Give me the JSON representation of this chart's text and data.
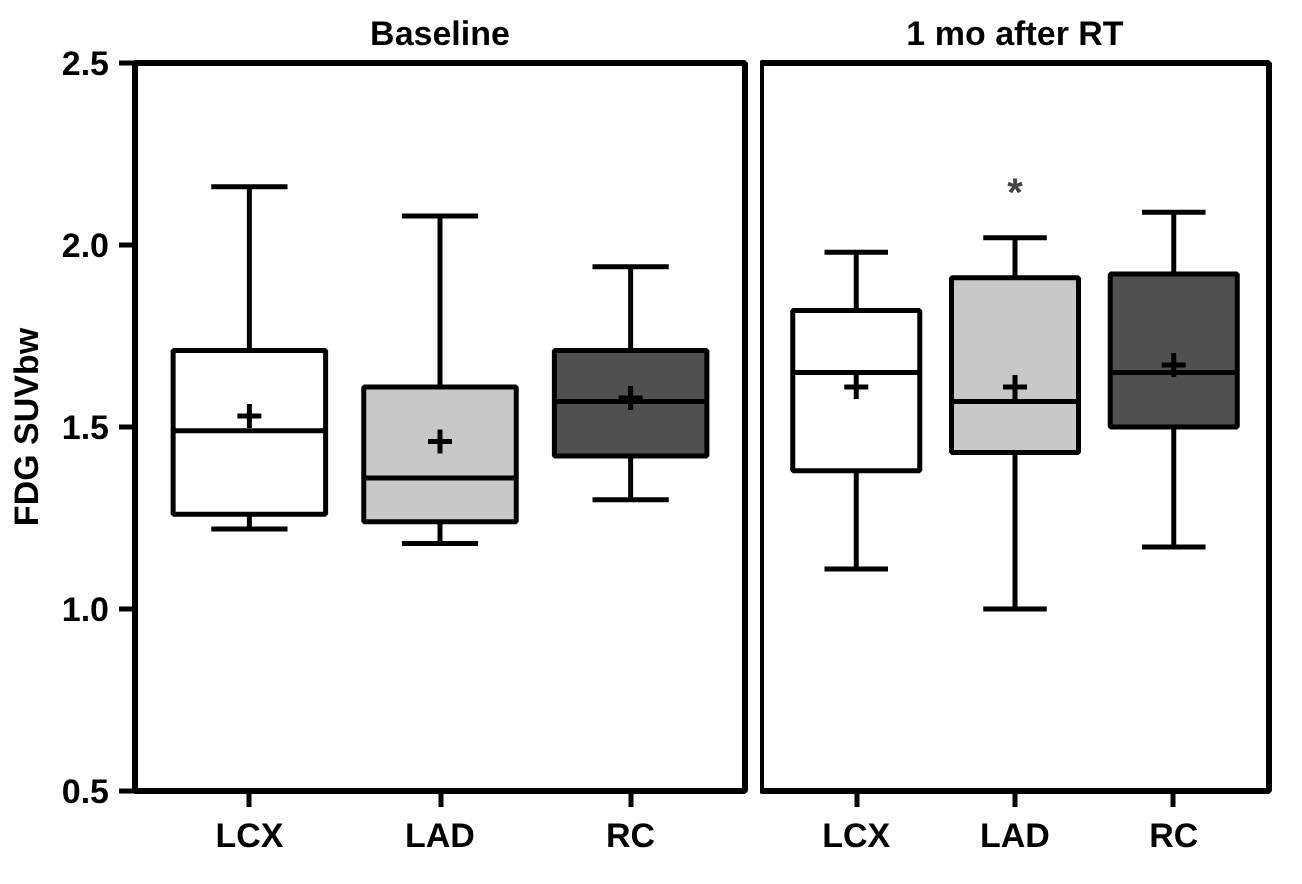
{
  "chart_data": [
    {
      "type": "box",
      "title": "Baseline",
      "ylabel": "FDG SUVbw",
      "categories": [
        "LCX",
        "LAD",
        "RC"
      ],
      "colors": [
        "#ffffff",
        "#c8c8c8",
        "#505050"
      ],
      "ylim": [
        0.5,
        2.5
      ],
      "yticks": [
        {
          "value": 0.5,
          "label": "0.5"
        },
        {
          "value": 1.0,
          "label": "1.0"
        },
        {
          "value": 1.5,
          "label": "1.5"
        },
        {
          "value": 2.0,
          "label": "2.0"
        },
        {
          "value": 2.5,
          "label": "2.5"
        }
      ],
      "grid": false,
      "boxes": [
        {
          "low": 1.22,
          "q1": 1.26,
          "median": 1.49,
          "q3": 1.71,
          "high": 2.16,
          "mean": 1.53
        },
        {
          "low": 1.18,
          "q1": 1.24,
          "median": 1.36,
          "q3": 1.61,
          "high": 2.08,
          "mean": 1.46
        },
        {
          "low": 1.3,
          "q1": 1.42,
          "median": 1.57,
          "q3": 1.71,
          "high": 1.94,
          "mean": 1.58
        }
      ]
    },
    {
      "type": "box",
      "title": "1 mo after RT",
      "categories": [
        "LCX",
        "LAD",
        "RC"
      ],
      "colors": [
        "#ffffff",
        "#c8c8c8",
        "#505050"
      ],
      "ylim": [
        0.5,
        2.5
      ],
      "tick_labels": "x",
      "grid": false,
      "annotations": [
        "*"
      ],
      "boxes": [
        {
          "low": 1.11,
          "q1": 1.38,
          "median": 1.65,
          "q3": 1.82,
          "high": 1.98,
          "mean": 1.61
        },
        {
          "low": 1.0,
          "q1": 1.43,
          "median": 1.57,
          "q3": 1.91,
          "high": 2.02,
          "mean": 1.61
        },
        {
          "low": 1.17,
          "q1": 1.5,
          "median": 1.65,
          "q3": 1.92,
          "high": 2.09,
          "mean": 1.67
        }
      ]
    }
  ]
}
